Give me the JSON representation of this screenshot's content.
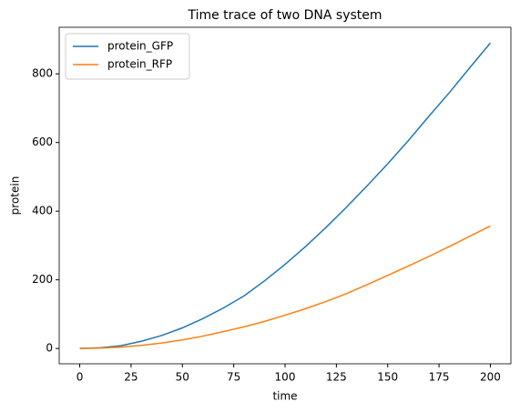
{
  "chart_data": {
    "type": "line",
    "title": "Time trace of two DNA system",
    "x_label": "time",
    "y_label": "protein",
    "x": [
      0,
      10,
      20,
      30,
      40,
      50,
      60,
      70,
      80,
      90,
      100,
      110,
      120,
      130,
      140,
      150,
      160,
      170,
      180,
      190,
      200
    ],
    "series": [
      {
        "name": "protein_GFP",
        "color": "#1f77b4",
        "values": [
          0,
          2,
          8,
          21,
          38,
          60,
          87,
          118,
          153,
          197,
          245,
          297,
          353,
          412,
          474,
          538,
          605,
          676,
          745,
          818,
          890
        ]
      },
      {
        "name": "protein_RFP",
        "color": "#ff7f0e",
        "values": [
          0,
          1,
          4,
          9,
          16,
          25,
          36,
          49,
          63,
          79,
          97,
          116,
          137,
          160,
          186,
          213,
          240,
          268,
          297,
          327,
          357
        ]
      }
    ],
    "xlim": [
      -10,
      210
    ],
    "ylim": [
      -44.6,
      935.6
    ],
    "xticks": [
      0,
      25,
      50,
      75,
      100,
      125,
      150,
      175,
      200
    ],
    "yticks": [
      0,
      200,
      400,
      600,
      800
    ],
    "grid": false,
    "legend": "upper left"
  }
}
